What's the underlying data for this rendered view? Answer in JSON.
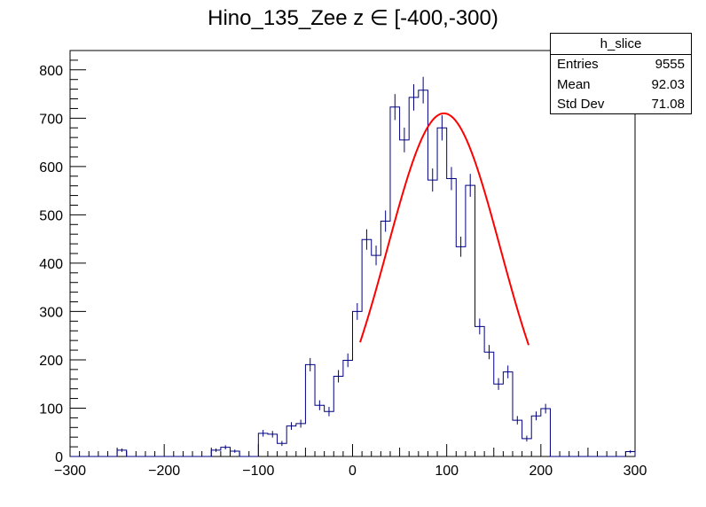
{
  "chart_data": {
    "type": "histogram",
    "title": "Hino_135_Zee z  ∈ [-400,-300)",
    "xlim": [
      -300,
      300
    ],
    "ylim": [
      0,
      840
    ],
    "x_ticks": [
      -300,
      -200,
      -100,
      0,
      100,
      200,
      300
    ],
    "y_ticks": [
      0,
      100,
      200,
      300,
      400,
      500,
      600,
      700,
      800
    ],
    "bin_width": 10,
    "bins_start": -300,
    "counts": [
      0,
      0,
      0,
      0,
      0,
      13,
      0,
      0,
      0,
      0,
      0,
      0,
      0,
      0,
      0,
      13,
      19,
      11,
      0,
      0,
      48,
      46,
      27,
      63,
      68,
      190,
      106,
      93,
      166,
      199,
      300,
      449,
      416,
      487,
      723,
      655,
      743,
      758,
      572,
      680,
      575,
      434,
      561,
      269,
      216,
      150,
      175,
      75,
      37,
      84,
      99,
      0,
      0,
      0,
      0,
      0,
      0,
      0,
      0,
      10
    ],
    "fit": {
      "name": "gaus",
      "constant": 710,
      "mean": 97,
      "sigma": 60,
      "x_range": [
        8,
        187
      ],
      "color": "#ff0000"
    },
    "line_color": "#000080",
    "grid": false,
    "legend": "top-right"
  },
  "stats": {
    "name": "h_slice",
    "rows": [
      {
        "label": "Entries",
        "value": "9555"
      },
      {
        "label": "Mean",
        "value": "92.03"
      },
      {
        "label": "Std Dev",
        "value": "71.08"
      }
    ]
  }
}
